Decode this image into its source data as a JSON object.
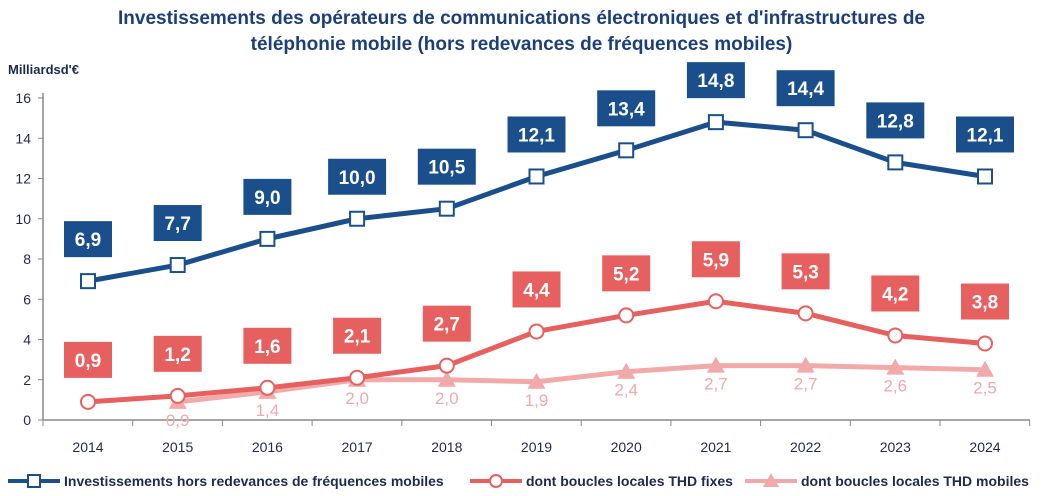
{
  "chart_data": {
    "type": "line",
    "title_lines": [
      "Investissements des opérateurs de communications électroniques et d'infrastructures de",
      "téléphonie mobile (hors redevances de fréquences mobiles)"
    ],
    "ylabel": "Milliardsd'€",
    "ylim": [
      0,
      16
    ],
    "yticks": [
      0,
      2,
      4,
      6,
      8,
      10,
      12,
      14,
      16
    ],
    "categories": [
      "2014",
      "2015",
      "2016",
      "2017",
      "2018",
      "2019",
      "2020",
      "2021",
      "2022",
      "2023",
      "2024"
    ],
    "legend_position": "bottom",
    "grid": false,
    "series": [
      {
        "name": "Investissements hors redevances de fréquences mobiles",
        "color": "#1b4f8c",
        "marker": "square",
        "values": [
          6.9,
          7.7,
          9.0,
          10.0,
          10.5,
          12.1,
          13.4,
          14.8,
          14.4,
          12.8,
          12.1
        ],
        "labels": [
          "6,9",
          "7,7",
          "9,0",
          "10,0",
          "10,5",
          "12,1",
          "13,4",
          "14,8",
          "14,4",
          "12,8",
          "12,1"
        ]
      },
      {
        "name": "dont boucles locales THD fixes",
        "color": "#e5605f",
        "marker": "circle",
        "values": [
          0.9,
          1.2,
          1.6,
          2.1,
          2.7,
          4.4,
          5.2,
          5.9,
          5.3,
          4.2,
          3.8
        ],
        "labels": [
          "0,9",
          "1,2",
          "1,6",
          "2,1",
          "2,7",
          "4,4",
          "5,2",
          "5,9",
          "5,3",
          "4,2",
          "3,8"
        ]
      },
      {
        "name": "dont boucles locales THD mobiles",
        "color": "#f2a9a9",
        "marker": "triangle",
        "values": [
          null,
          0.9,
          1.4,
          2.0,
          2.0,
          1.9,
          2.4,
          2.7,
          2.7,
          2.6,
          2.5
        ],
        "labels": [
          null,
          "0,9",
          "1,4",
          "2,0",
          "2,0",
          "1,9",
          "2,4",
          "2,7",
          "2,7",
          "2,6",
          "2,5"
        ]
      }
    ]
  }
}
